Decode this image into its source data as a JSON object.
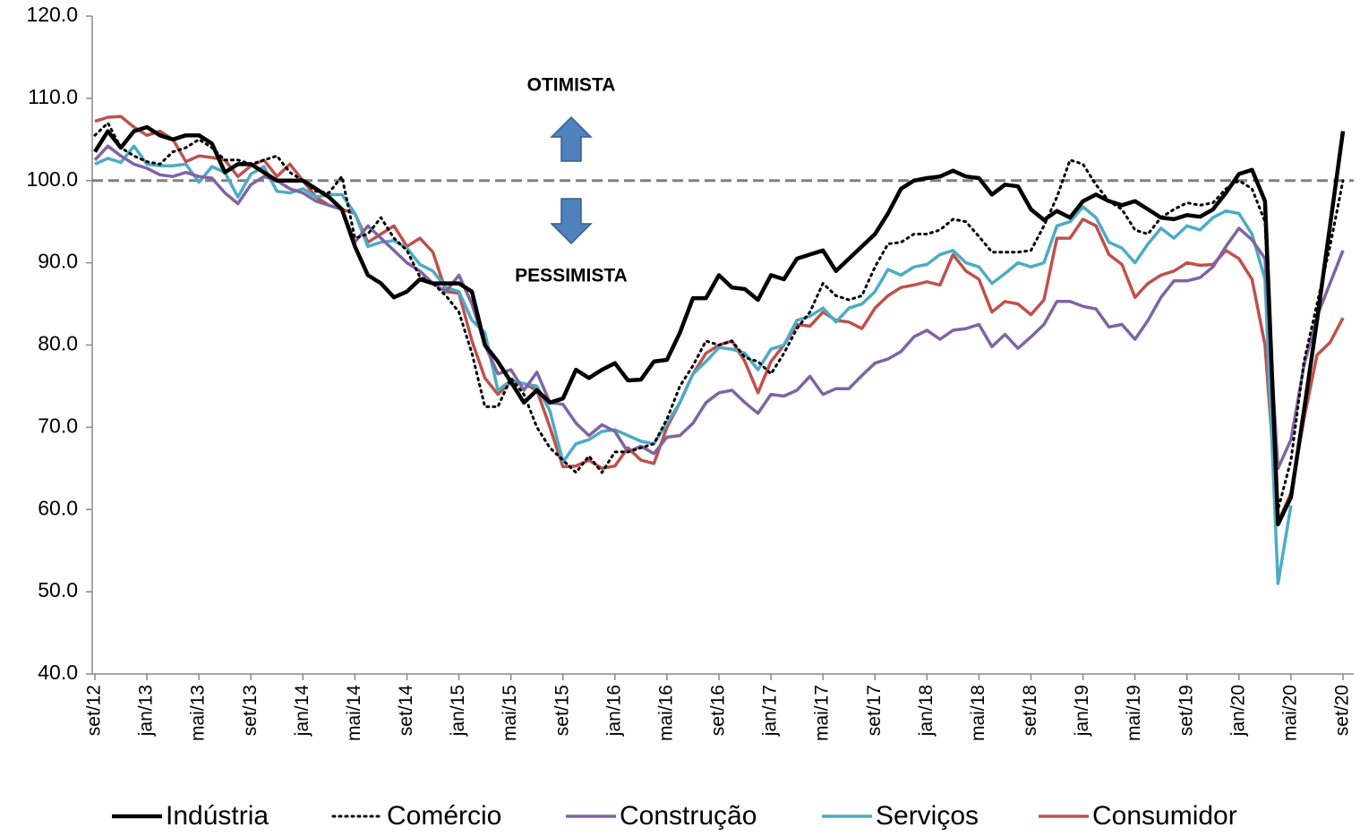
{
  "chart_data": {
    "type": "line",
    "categories": [
      "set/12",
      null,
      null,
      null,
      "jan/13",
      null,
      null,
      null,
      "mai/13",
      null,
      null,
      null,
      "set/13",
      null,
      null,
      null,
      "jan/14",
      null,
      null,
      null,
      "mai/14",
      null,
      null,
      null,
      "set/14",
      null,
      null,
      null,
      "jan/15",
      null,
      null,
      null,
      "mai/15",
      null,
      null,
      null,
      "set/15",
      null,
      null,
      null,
      "jan/16",
      null,
      null,
      null,
      "mai/16",
      null,
      null,
      null,
      "set/16",
      null,
      null,
      null,
      "jan/17",
      null,
      null,
      null,
      "mai/17",
      null,
      null,
      null,
      "set/17",
      null,
      null,
      null,
      "jan/18",
      null,
      null,
      null,
      "mai/18",
      null,
      null,
      null,
      "set/18",
      null,
      null,
      null,
      "jan/19",
      null,
      null,
      null,
      "mai/19",
      null,
      null,
      null,
      "set/19",
      null,
      null,
      null,
      "jan/20",
      null,
      null,
      null,
      "mai/20",
      null,
      null,
      null,
      "set/20"
    ],
    "series": [
      {
        "name": "Indústria",
        "color": "#000000",
        "style": "solid",
        "values": [
          103.5,
          106,
          104,
          106,
          106.5,
          105.5,
          105,
          105.5,
          105.5,
          104.5,
          101,
          102,
          102,
          101,
          100,
          100,
          100,
          99,
          98,
          96.5,
          92,
          88.5,
          87.5,
          85.8,
          86.5,
          88,
          87.5,
          87.5,
          87.5,
          86.5,
          80,
          78,
          75.5,
          73,
          74.5,
          73,
          73.5,
          77,
          76,
          77,
          77.8,
          75.7,
          75.8,
          78,
          78.2,
          81.5,
          85.7,
          85.7,
          88.5,
          87,
          86.8,
          85.5,
          88.5,
          88,
          90.5,
          91,
          91.5,
          89,
          90.5,
          92,
          93.5,
          96,
          99,
          100,
          100.3,
          100.5,
          101.2,
          100.5,
          100.3,
          98.3,
          99.5,
          99.3,
          96.5,
          95.2,
          96.3,
          95.5,
          97.5,
          98.3,
          97.5,
          97,
          97.5,
          96.5,
          95.5,
          95.3,
          95.8,
          95.6,
          96.5,
          98.5,
          100.8,
          101.3,
          97.5,
          58.2,
          61.5,
          72,
          83,
          94.5,
          106
        ]
      },
      {
        "name": "Comércio",
        "color": "#000000",
        "style": "dotted",
        "values": [
          105.5,
          107,
          104,
          103,
          102.3,
          102,
          103.5,
          104,
          105,
          104,
          102.5,
          102.5,
          102,
          102.5,
          103,
          101,
          100,
          98.7,
          98.5,
          100.5,
          93,
          93.5,
          95.5,
          93,
          91.5,
          88.3,
          87.5,
          86,
          84,
          79,
          72.5,
          72.5,
          76,
          74,
          70,
          67.5,
          66,
          64.5,
          66.5,
          64.5,
          67,
          67,
          67.5,
          68,
          71,
          75,
          77.5,
          80.5,
          80,
          80.5,
          78.5,
          78,
          76.5,
          79,
          82,
          84,
          87.5,
          86,
          85.5,
          86,
          89.5,
          92.3,
          92.5,
          93.5,
          93.5,
          94,
          95.3,
          95,
          93.2,
          91.3,
          91.3,
          91.3,
          91.5,
          94.5,
          98,
          102.5,
          102,
          99.5,
          97.5,
          96.5,
          94,
          93.5,
          95.5,
          96.5,
          97.3,
          97,
          97.3,
          99,
          100,
          99,
          95,
          60,
          66,
          78,
          85,
          92,
          100
        ]
      },
      {
        "name": "Construção",
        "color": "#8064a2",
        "style": "solid",
        "values": [
          102.5,
          104.2,
          103,
          102,
          101.5,
          100.7,
          100.5,
          101,
          100.5,
          100.3,
          98.5,
          97.2,
          99.5,
          100.5,
          100,
          99,
          98.5,
          97.5,
          97,
          96.5,
          92.5,
          94.5,
          93,
          91.5,
          90,
          89,
          87.5,
          86.5,
          88.5,
          85,
          80,
          76.5,
          77,
          74.5,
          76.7,
          73,
          72.8,
          70.5,
          69,
          70.3,
          69.5,
          67,
          67.7,
          66.8,
          68.8,
          69,
          70.5,
          73,
          74.2,
          74.5,
          73,
          71.7,
          74,
          73.8,
          74.5,
          76.2,
          74,
          74.7,
          74.7,
          76.3,
          77.8,
          78.3,
          79.2,
          81,
          81.8,
          80.7,
          81.8,
          82,
          82.5,
          79.8,
          81.3,
          79.6,
          81,
          82.5,
          85.3,
          85.3,
          84.7,
          84.4,
          82.2,
          82.5,
          80.7,
          83,
          85.8,
          87.8,
          87.8,
          88.2,
          89.5,
          92,
          94.2,
          92.8,
          90.5,
          65,
          68.5,
          77.5,
          83.5,
          87.5,
          91.5
        ]
      },
      {
        "name": "Serviços",
        "color": "#4bacc6",
        "style": "solid",
        "values": [
          102,
          102.7,
          102.2,
          104.2,
          102,
          101.8,
          101.8,
          102,
          99.8,
          101.7,
          101,
          98,
          100.8,
          101.7,
          98.7,
          98.5,
          99,
          98,
          98.3,
          98.3,
          96,
          92,
          92.5,
          92.7,
          91.8,
          89.8,
          89,
          87,
          86.5,
          83,
          81.5,
          74.5,
          75.7,
          75.3,
          75,
          72,
          65.8,
          68,
          68.5,
          69.5,
          69.7,
          69,
          68.3,
          68,
          70.5,
          73,
          76.5,
          78,
          79.7,
          79.5,
          79,
          77,
          79.5,
          80,
          83,
          83.5,
          84.5,
          82.8,
          84.5,
          85,
          86.5,
          89.2,
          88.5,
          89.5,
          89.8,
          91,
          91.5,
          90,
          89.5,
          87.5,
          88.7,
          90,
          89.5,
          90,
          94.5,
          95,
          96.8,
          95.5,
          92.5,
          91.8,
          90,
          92.3,
          94.2,
          93,
          94.5,
          94,
          95.5,
          96.3,
          96,
          93.5,
          88,
          51,
          60.5,
          null,
          null,
          null,
          null
        ]
      },
      {
        "name": "Consumidor",
        "color": "#c0504d",
        "style": "solid",
        "values": [
          107.2,
          107.7,
          107.8,
          106.5,
          105.5,
          106,
          105,
          102.3,
          103,
          102.8,
          102.5,
          100.5,
          101.8,
          102.5,
          100.5,
          102,
          100,
          98,
          97,
          96.5,
          96,
          92.5,
          93.5,
          94.5,
          92,
          93,
          91.3,
          86.5,
          86.3,
          80.5,
          76,
          74,
          75.5,
          75.3,
          74.5,
          70,
          65.2,
          65.3,
          66,
          65,
          65.3,
          67.5,
          66,
          65.6,
          70,
          73,
          76.5,
          79,
          80,
          80.5,
          78,
          74.2,
          78,
          80,
          82.5,
          82.3,
          84,
          83,
          82.8,
          82,
          84.5,
          86,
          87,
          87.3,
          87.7,
          87.3,
          91,
          89,
          88,
          84,
          85.3,
          85,
          83.7,
          85.5,
          93,
          93,
          95.3,
          94.5,
          91,
          89.8,
          85.8,
          87.5,
          88.5,
          89,
          90,
          89.7,
          89.8,
          91.5,
          90.5,
          88,
          80,
          58.5,
          62,
          71,
          78.8,
          80.3,
          83.3
        ]
      }
    ],
    "ylim": [
      40,
      120
    ],
    "yticks": [
      {
        "value": 40,
        "label": "40.0"
      },
      {
        "value": 50,
        "label": "50.0"
      },
      {
        "value": 60,
        "label": "60.0"
      },
      {
        "value": 70,
        "label": "70.0"
      },
      {
        "value": 80,
        "label": "80.0"
      },
      {
        "value": 90,
        "label": "90.0"
      },
      {
        "value": 100,
        "label": "100.0"
      },
      {
        "value": 110,
        "label": "110.0"
      },
      {
        "value": 120,
        "label": "120.0"
      }
    ],
    "reference_line": 100,
    "annotations": [
      "OTIMISTA",
      "PESSIMISTA"
    ],
    "legend": "bottom"
  }
}
